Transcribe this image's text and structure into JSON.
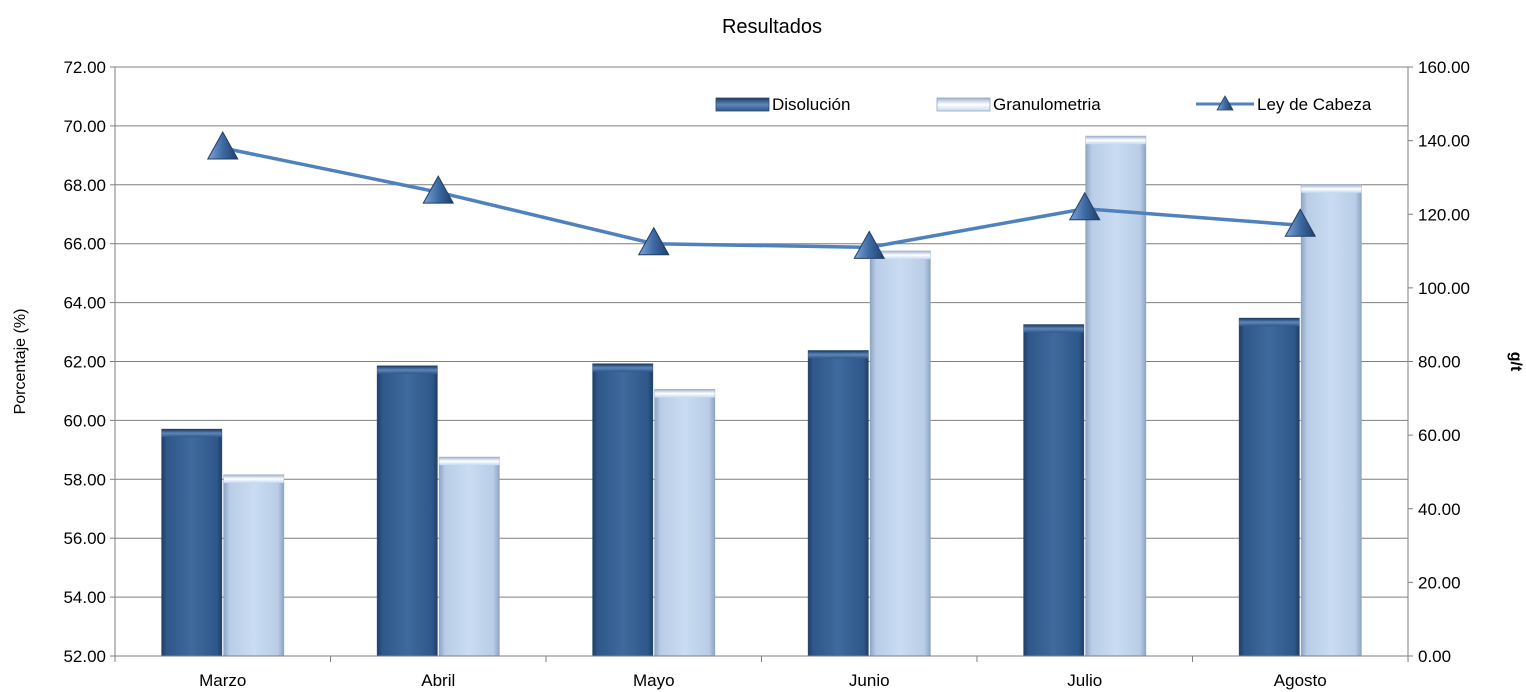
{
  "chart_data": {
    "type": "bar",
    "title": "Resultados",
    "categories": [
      "Marzo",
      "Abril",
      "Mayo",
      "Junio",
      "Julio",
      "Agosto"
    ],
    "series": [
      {
        "name": "Disolución",
        "type": "bar",
        "axis": "left",
        "color": "#3d6798",
        "values": [
          59.7,
          61.85,
          61.92,
          62.37,
          63.25,
          63.47
        ]
      },
      {
        "name": "Granulometria",
        "type": "bar",
        "axis": "left",
        "color": "#c6d9f1",
        "values": [
          58.15,
          58.75,
          61.05,
          65.75,
          69.65,
          68.0
        ]
      },
      {
        "name": "Ley de Cabeza",
        "type": "line",
        "axis": "right",
        "color": "#4f81bd",
        "marker": "triangle",
        "values": [
          138.0,
          126.0,
          112.0,
          111.0,
          121.5,
          117.0
        ]
      }
    ],
    "ylabel": "Porcentaje (%)",
    "ylim": [
      52.0,
      72.0
    ],
    "yticks": [
      "52.00",
      "54.00",
      "56.00",
      "58.00",
      "60.00",
      "62.00",
      "64.00",
      "66.00",
      "68.00",
      "70.00",
      "72.00"
    ],
    "y2label": "g/t",
    "y2lim": [
      0.0,
      160.0
    ],
    "y2ticks": [
      "0.00",
      "20.00",
      "40.00",
      "60.00",
      "80.00",
      "100.00",
      "120.00",
      "140.00",
      "160.00"
    ],
    "grid": true,
    "legend": "top-right"
  }
}
